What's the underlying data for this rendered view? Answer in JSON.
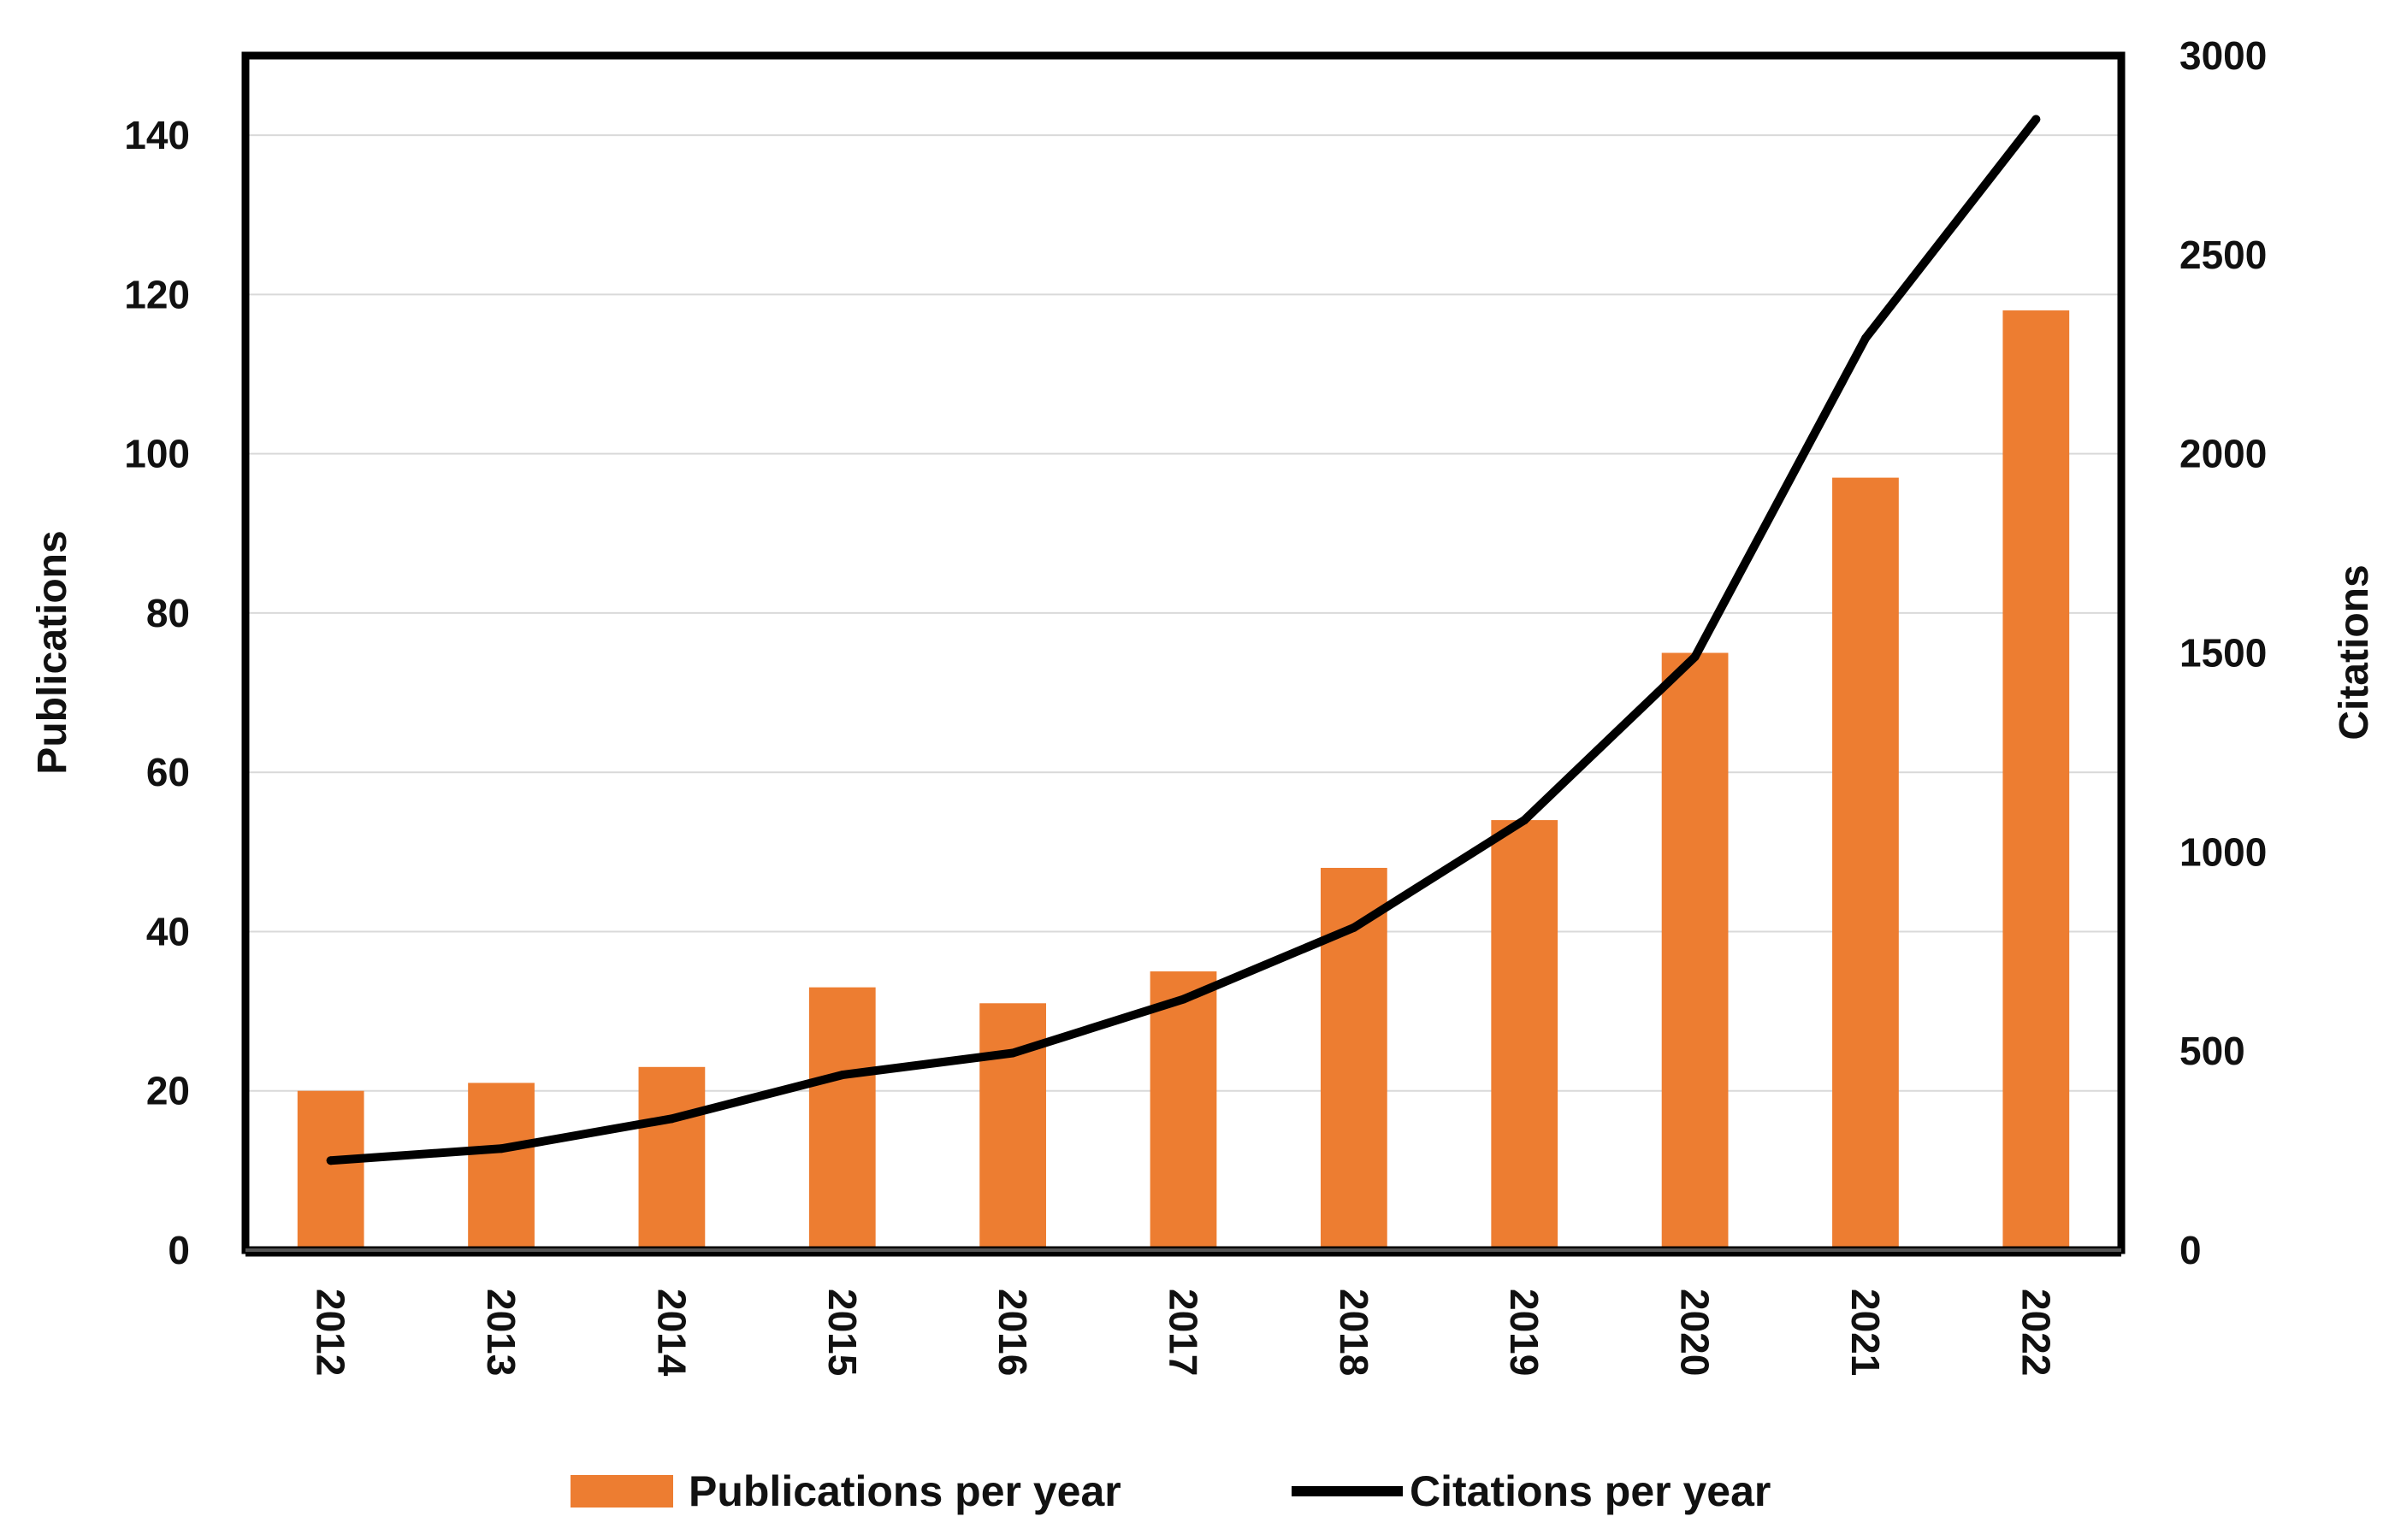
{
  "chart_data": {
    "type": "bar",
    "categories": [
      "2012",
      "2013",
      "2014",
      "2015",
      "2016",
      "2017",
      "2018",
      "2019",
      "2020",
      "2021",
      "2022"
    ],
    "series": [
      {
        "name": "Publications per year",
        "type": "bar",
        "axis": "left",
        "color": "#ED7D31",
        "values": [
          20,
          21,
          23,
          33,
          31,
          35,
          48,
          54,
          75,
          97,
          118
        ]
      },
      {
        "name": "Citations per year",
        "type": "line",
        "axis": "right",
        "color": "#000000",
        "values": [
          225,
          255,
          330,
          440,
          495,
          630,
          810,
          1080,
          1490,
          2290,
          2840
        ]
      }
    ],
    "ylabel": "Publications",
    "y2label": "Citations",
    "xlabel": "",
    "ylim": [
      0,
      150
    ],
    "y2lim": [
      0,
      3000
    ],
    "yticks": [
      "0",
      "20",
      "40",
      "60",
      "80",
      "100",
      "120",
      "140"
    ],
    "y2ticks": [
      "0",
      "500",
      "1000",
      "1500",
      "2000",
      "2500",
      "3000"
    ],
    "grid": true,
    "legend": "bottom-center"
  }
}
